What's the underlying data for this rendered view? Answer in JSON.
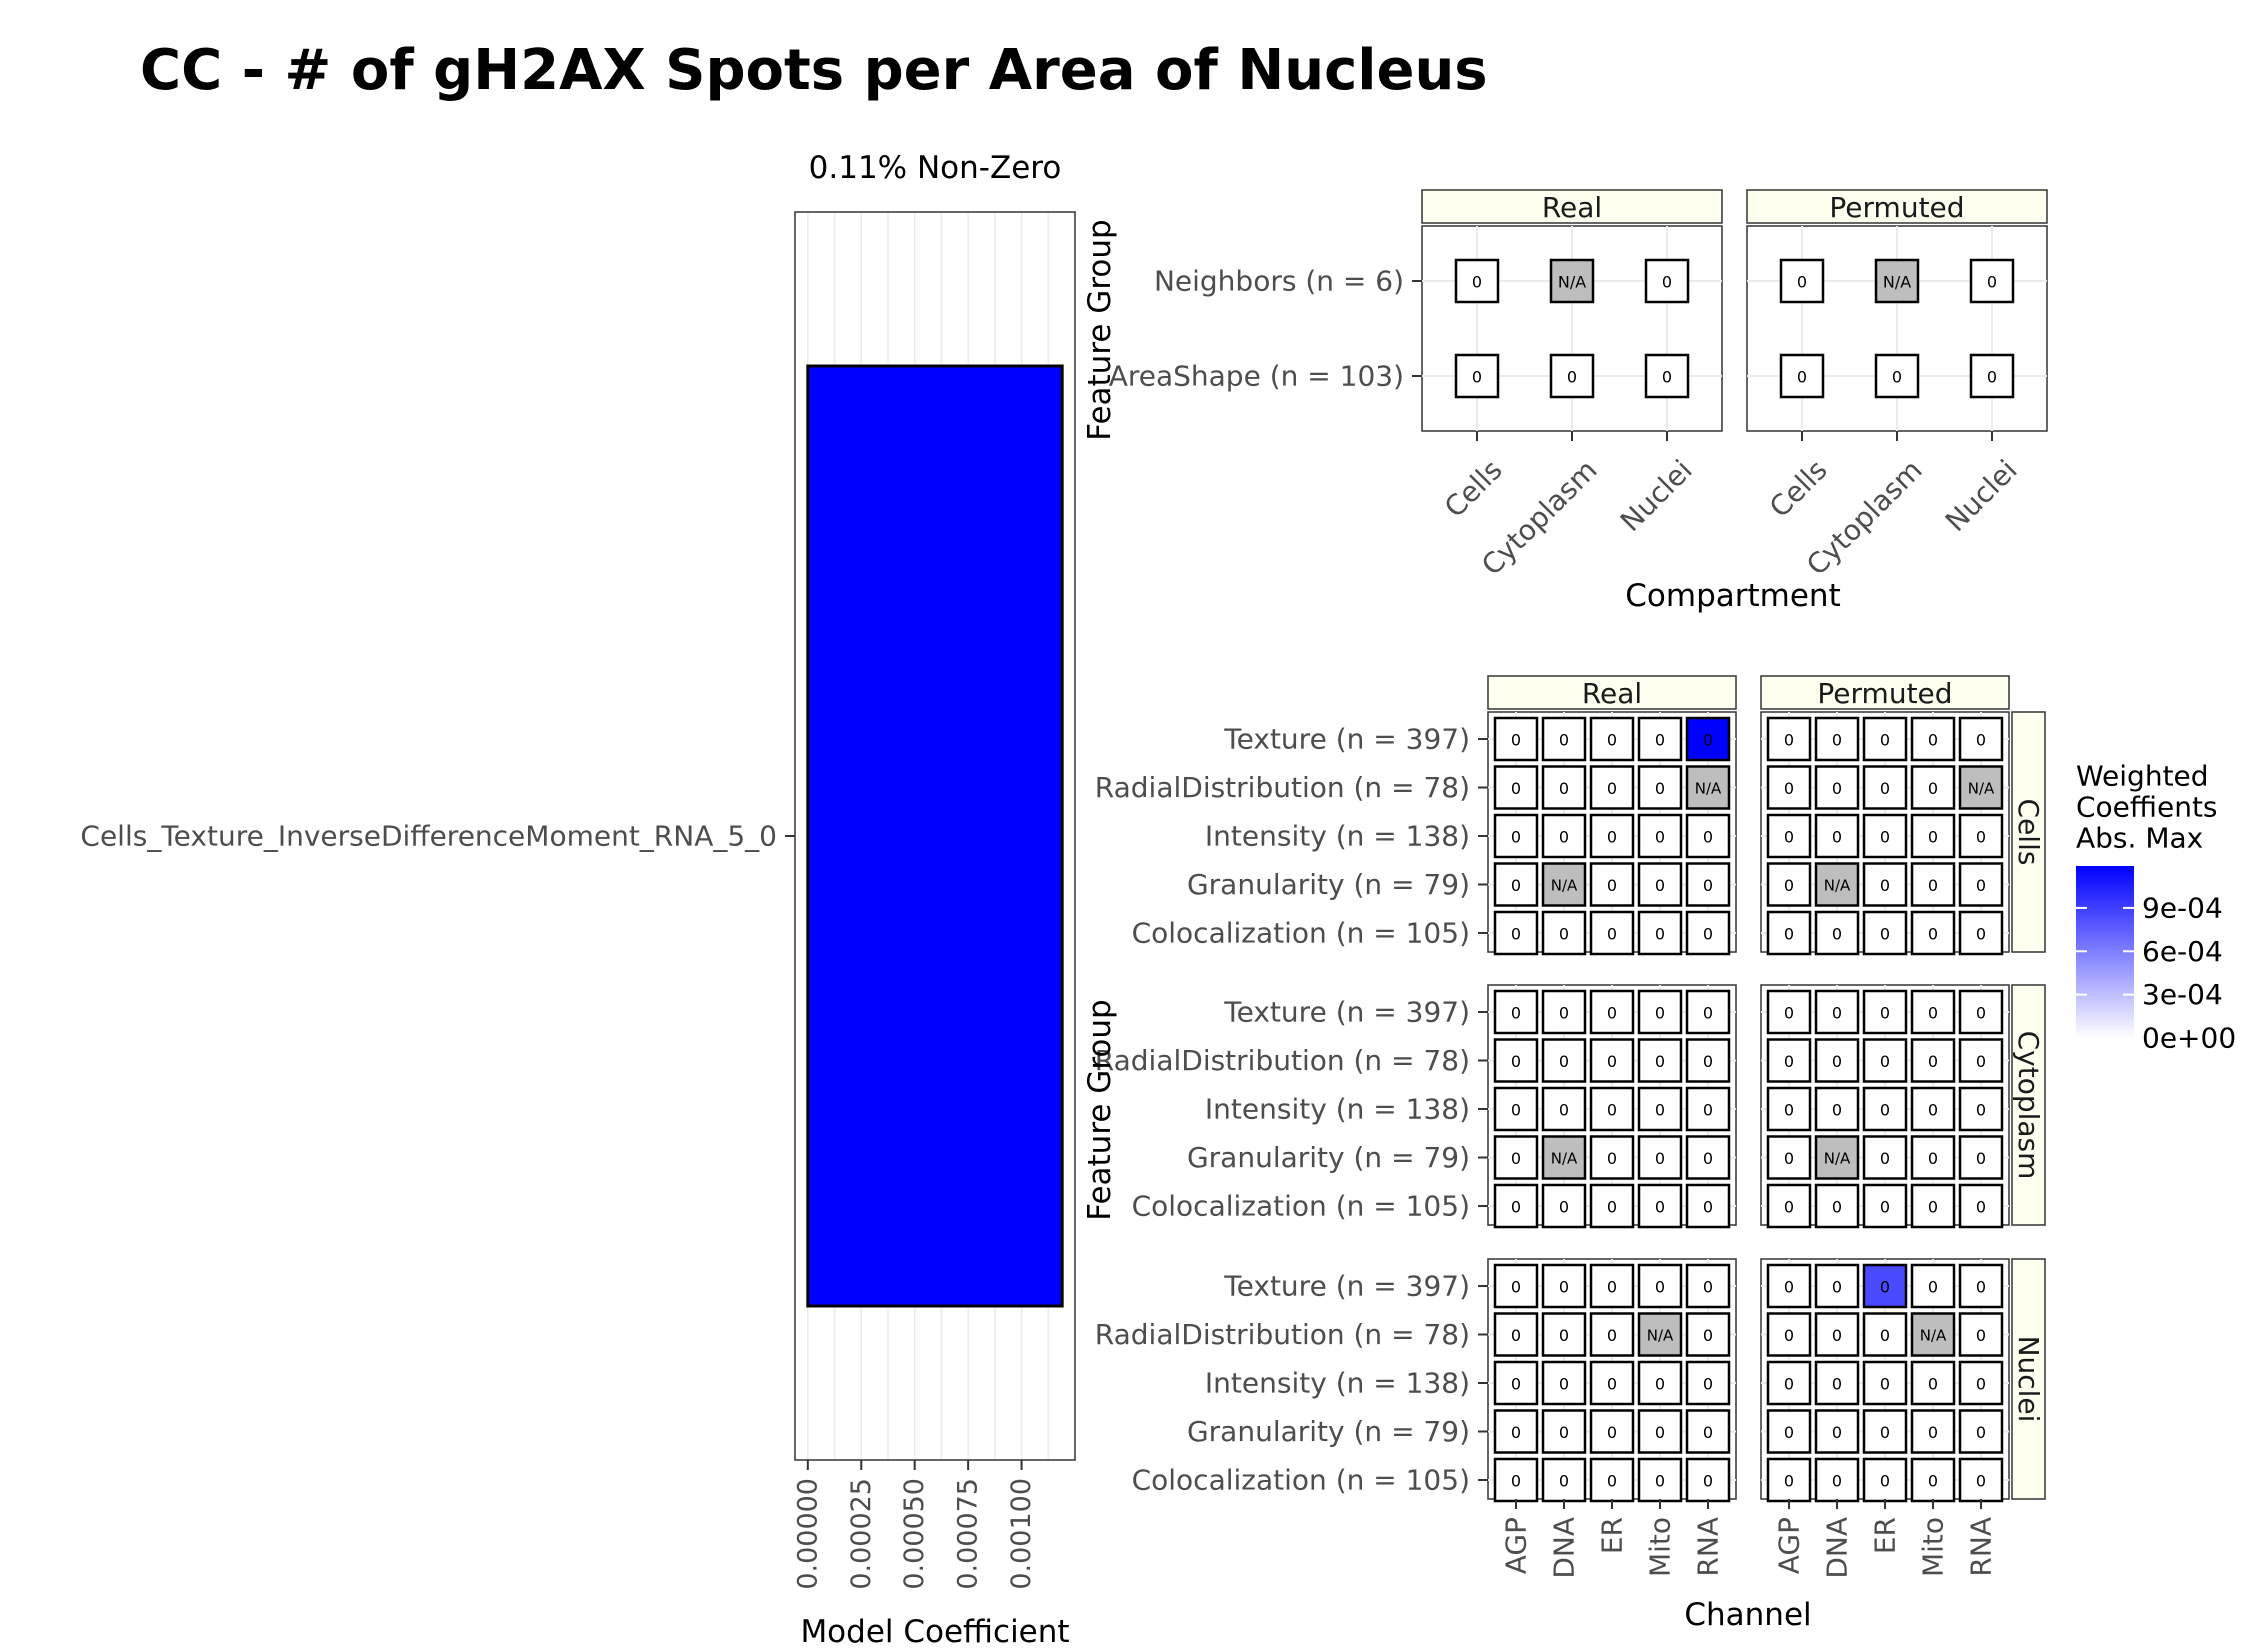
{
  "title": "CC - # of gH2AX Spots per Area of Nucleus",
  "colors": {
    "bar": "#0000FF",
    "na": "#BEBEBE",
    "strip": "#FFFFF0",
    "grid": "#EBEBEB",
    "low": "#FFFFFF",
    "high": "#0000FF"
  },
  "chart_data": [
    {
      "type": "bar",
      "orientation": "horizontal",
      "title": "0.11% Non-Zero",
      "categories": [
        "Cells_Texture_InverseDifferenceMoment_RNA_5_0"
      ],
      "values": [
        0.00119
      ],
      "xlabel": "Model Coefficient",
      "ylabel": "",
      "xticks": [
        "0.00000",
        "0.00025",
        "0.00050",
        "0.00075",
        "0.00100"
      ],
      "xlim": [
        -6e-05,
        0.00125
      ],
      "grid": true
    },
    {
      "type": "heatmap",
      "xlabel": "Compartment",
      "ylabel": "Feature Group",
      "facets": [
        "Real",
        "Permuted"
      ],
      "x": [
        "Cells",
        "Cytoplasm",
        "Nuclei"
      ],
      "y": [
        "Neighbors (n = 6)",
        "AreaShape (n = 103)"
      ],
      "cells": {
        "Real": [
          [
            "0",
            "N/A",
            "0"
          ],
          [
            "0",
            "0",
            "0"
          ]
        ],
        "Permuted": [
          [
            "0",
            "N/A",
            "0"
          ],
          [
            "0",
            "0",
            "0"
          ]
        ]
      },
      "weights": {
        "Real": [
          [
            0,
            null,
            0
          ],
          [
            0,
            0,
            0
          ]
        ],
        "Permuted": [
          [
            0,
            null,
            0
          ],
          [
            0,
            0,
            0
          ]
        ]
      }
    },
    {
      "type": "heatmap",
      "xlabel": "Channel",
      "ylabel": "Feature Group",
      "col_facets": [
        "Real",
        "Permuted"
      ],
      "row_facets": [
        "Cells",
        "Cytoplasm",
        "Nuclei"
      ],
      "x": [
        "AGP",
        "DNA",
        "ER",
        "Mito",
        "RNA"
      ],
      "y": [
        "Texture (n = 397)",
        "RadialDistribution (n = 78)",
        "Intensity (n = 138)",
        "Granularity (n = 79)",
        "Colocalization (n = 105)"
      ],
      "legend": {
        "title": "Weighted\nCoeffients\nAbs. Max",
        "ticks": [
          "9e-04",
          "6e-04",
          "3e-04",
          "0e+00"
        ],
        "tick_values": [
          0.0009,
          0.0006,
          0.0003,
          0
        ],
        "range": [
          0,
          0.00119
        ],
        "position": "right"
      },
      "cells": {
        "Cells": {
          "Real": [
            [
              "0",
              "0",
              "0",
              "0",
              "0"
            ],
            [
              "0",
              "0",
              "0",
              "0",
              "N/A"
            ],
            [
              "0",
              "0",
              "0",
              "0",
              "0"
            ],
            [
              "0",
              "N/A",
              "0",
              "0",
              "0"
            ],
            [
              "0",
              "0",
              "0",
              "0",
              "0"
            ]
          ],
          "Permuted": [
            [
              "0",
              "0",
              "0",
              "0",
              "0"
            ],
            [
              "0",
              "0",
              "0",
              "0",
              "N/A"
            ],
            [
              "0",
              "0",
              "0",
              "0",
              "0"
            ],
            [
              "0",
              "N/A",
              "0",
              "0",
              "0"
            ],
            [
              "0",
              "0",
              "0",
              "0",
              "0"
            ]
          ]
        },
        "Cytoplasm": {
          "Real": [
            [
              "0",
              "0",
              "0",
              "0",
              "0"
            ],
            [
              "0",
              "0",
              "0",
              "0",
              "0"
            ],
            [
              "0",
              "0",
              "0",
              "0",
              "0"
            ],
            [
              "0",
              "N/A",
              "0",
              "0",
              "0"
            ],
            [
              "0",
              "0",
              "0",
              "0",
              "0"
            ]
          ],
          "Permuted": [
            [
              "0",
              "0",
              "0",
              "0",
              "0"
            ],
            [
              "0",
              "0",
              "0",
              "0",
              "0"
            ],
            [
              "0",
              "0",
              "0",
              "0",
              "0"
            ],
            [
              "0",
              "N/A",
              "0",
              "0",
              "0"
            ],
            [
              "0",
              "0",
              "0",
              "0",
              "0"
            ]
          ]
        },
        "Nuclei": {
          "Real": [
            [
              "0",
              "0",
              "0",
              "0",
              "0"
            ],
            [
              "0",
              "0",
              "0",
              "N/A",
              "0"
            ],
            [
              "0",
              "0",
              "0",
              "0",
              "0"
            ],
            [
              "0",
              "0",
              "0",
              "0",
              "0"
            ],
            [
              "0",
              "0",
              "0",
              "0",
              "0"
            ]
          ],
          "Permuted": [
            [
              "0",
              "0",
              "0",
              "0",
              "0"
            ],
            [
              "0",
              "0",
              "0",
              "N/A",
              "0"
            ],
            [
              "0",
              "0",
              "0",
              "0",
              "0"
            ],
            [
              "0",
              "0",
              "0",
              "0",
              "0"
            ],
            [
              "0",
              "0",
              "0",
              "0",
              "0"
            ]
          ]
        }
      },
      "weights": {
        "Cells": {
          "Real": [
            [
              0,
              0,
              0,
              0,
              0.00119
            ],
            [
              0,
              0,
              0,
              0,
              null
            ],
            [
              0,
              0,
              0,
              0,
              0
            ],
            [
              0,
              null,
              0,
              0,
              0
            ],
            [
              0,
              0,
              0,
              0,
              0
            ]
          ],
          "Permuted": [
            [
              0,
              0,
              0,
              0,
              0
            ],
            [
              0,
              0,
              0,
              0,
              null
            ],
            [
              0,
              0,
              0,
              0,
              0
            ],
            [
              0,
              null,
              0,
              0,
              0
            ],
            [
              0,
              0,
              0,
              0,
              0
            ]
          ]
        },
        "Cytoplasm": {
          "Real": [
            [
              0,
              0,
              0,
              0,
              0
            ],
            [
              0,
              0,
              0,
              0,
              0
            ],
            [
              0,
              0,
              0,
              0,
              0
            ],
            [
              0,
              null,
              0,
              0,
              0
            ],
            [
              0,
              0,
              0,
              0,
              0
            ]
          ],
          "Permuted": [
            [
              0,
              0,
              0,
              0,
              0
            ],
            [
              0,
              0,
              0,
              0,
              0
            ],
            [
              0,
              0,
              0,
              0,
              0
            ],
            [
              0,
              null,
              0,
              0,
              0
            ],
            [
              0,
              0,
              0,
              0,
              0
            ]
          ]
        },
        "Nuclei": {
          "Real": [
            [
              0,
              0,
              0,
              0,
              0
            ],
            [
              0,
              0,
              0,
              null,
              0
            ],
            [
              0,
              0,
              0,
              0,
              0
            ],
            [
              0,
              0,
              0,
              0,
              0
            ],
            [
              0,
              0,
              0,
              0,
              0
            ]
          ],
          "Permuted": [
            [
              0,
              0,
              0.00085,
              0,
              0
            ],
            [
              0,
              0,
              0,
              null,
              0
            ],
            [
              0,
              0,
              0,
              0,
              0
            ],
            [
              0,
              0,
              0,
              0,
              0
            ],
            [
              0,
              0,
              0,
              0,
              0
            ]
          ]
        }
      }
    }
  ]
}
